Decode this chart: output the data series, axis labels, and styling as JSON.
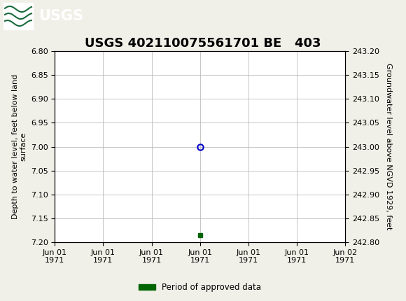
{
  "title": "USGS 402110075561701 BE   403",
  "title_fontsize": 13,
  "bg_color": "#f0f0e8",
  "header_color": "#1a6b3c",
  "plot_bg_color": "#ffffff",
  "grid_color": "#bbbbbb",
  "left_ylabel": "Depth to water level, feet below land\nsurface",
  "right_ylabel": "Groundwater level above NGVD 1929, feet",
  "ylim_left_top": 6.8,
  "ylim_left_bottom": 7.2,
  "ylim_right_top": 243.2,
  "ylim_right_bottom": 242.8,
  "left_yticks": [
    6.8,
    6.85,
    6.9,
    6.95,
    7.0,
    7.05,
    7.1,
    7.15,
    7.2
  ],
  "right_yticks": [
    243.2,
    243.15,
    243.1,
    243.05,
    243.0,
    242.95,
    242.9,
    242.85,
    242.8
  ],
  "xlim": [
    0,
    6
  ],
  "xtick_positions": [
    0,
    1,
    2,
    3,
    4,
    5,
    6
  ],
  "xtick_labels": [
    "Jun 01\n1971",
    "Jun 01\n1971",
    "Jun 01\n1971",
    "Jun 01\n1971",
    "Jun 01\n1971",
    "Jun 01\n1971",
    "Jun 02\n1971"
  ],
  "data_point_x": 3.0,
  "data_point_y": 7.0,
  "data_point_color": "#0000cc",
  "data_point_markersize": 6,
  "green_square_x": 3.0,
  "green_square_y": 7.185,
  "green_square_color": "#006400",
  "legend_label": "Period of approved data",
  "tick_fontsize": 8,
  "ylabel_fontsize": 8
}
